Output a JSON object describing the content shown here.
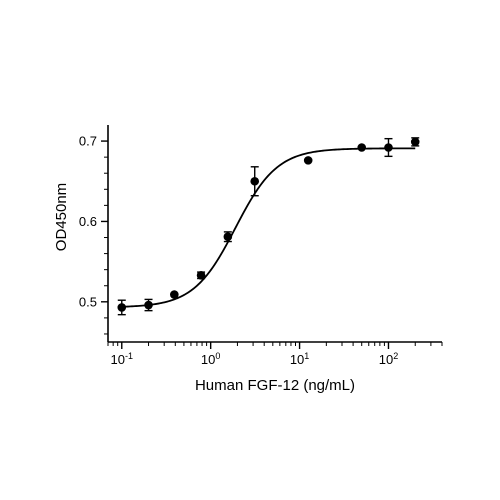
{
  "chart_data": {
    "type": "scatter",
    "xlabel": "Human FGF-12 (ng/mL)",
    "ylabel": "OD450nm",
    "x_scale": "log",
    "xlim": [
      0.07,
      400
    ],
    "ylim": [
      0.45,
      0.72
    ],
    "x_ticks": [
      0.1,
      1,
      10,
      100
    ],
    "x_tick_base": "10",
    "x_tick_exponents": [
      "-1",
      "0",
      "1",
      "2"
    ],
    "y_ticks": [
      0.5,
      0.6,
      0.7
    ],
    "y_tick_labels": [
      "0.5",
      "0.6",
      "0.7"
    ],
    "grid": false,
    "series": [
      {
        "points": [
          {
            "x": 0.1,
            "y": 0.493,
            "err": 0.009
          },
          {
            "x": 0.2,
            "y": 0.496,
            "err": 0.007
          },
          {
            "x": 0.39,
            "y": 0.509,
            "err": 0.0
          },
          {
            "x": 0.78,
            "y": 0.533,
            "err": 0.004
          },
          {
            "x": 1.56,
            "y": 0.581,
            "err": 0.006
          },
          {
            "x": 3.13,
            "y": 0.65,
            "err": 0.018
          },
          {
            "x": 12.5,
            "y": 0.676,
            "err": 0.0
          },
          {
            "x": 50,
            "y": 0.692,
            "err": 0.0
          },
          {
            "x": 100,
            "y": 0.692,
            "err": 0.011
          },
          {
            "x": 200,
            "y": 0.699,
            "err": 0.005
          }
        ],
        "fit": {
          "model": "4PL",
          "bottom": 0.493,
          "top": 0.691,
          "ec50": 1.9,
          "hill": 1.85
        }
      }
    ]
  }
}
